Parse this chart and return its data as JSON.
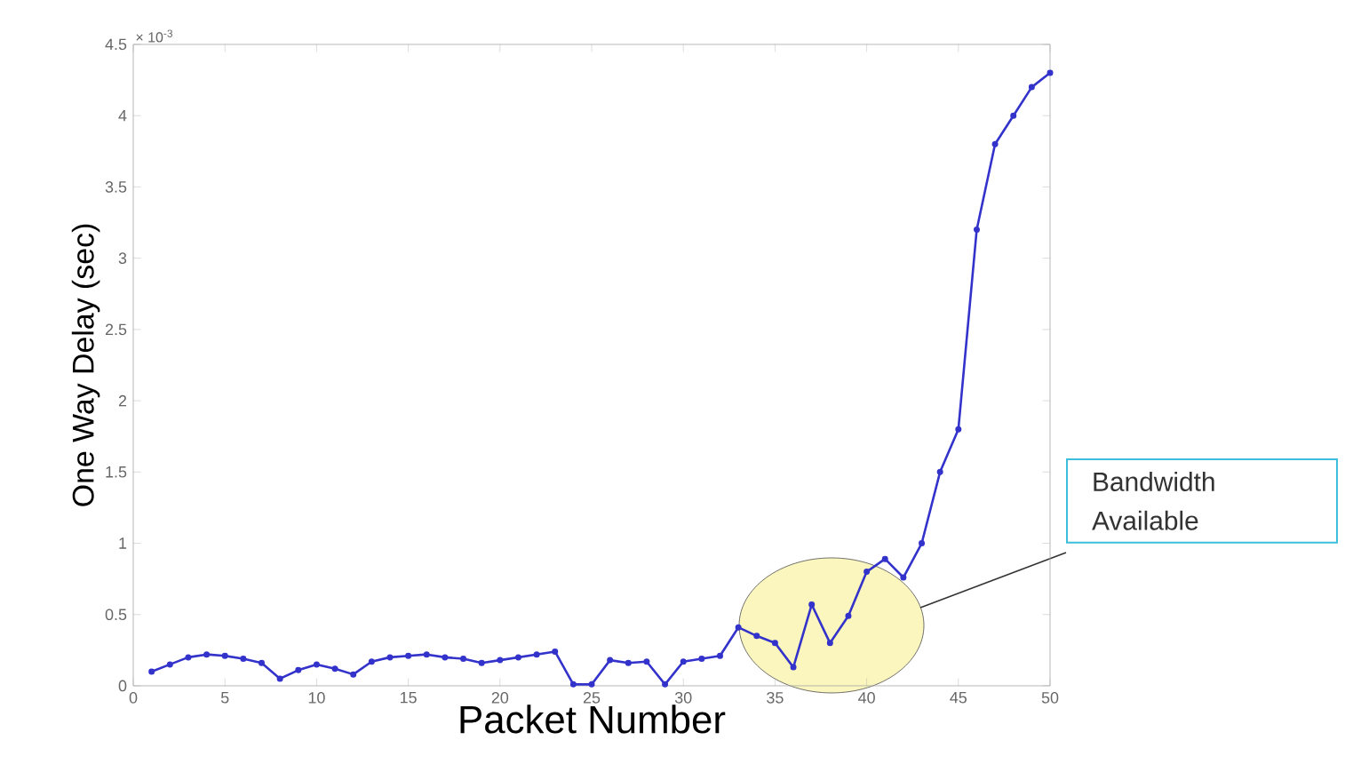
{
  "chart_data": {
    "type": "line",
    "xlabel": "Packet Number",
    "ylabel": "One Way Delay (sec)",
    "x": [
      1,
      2,
      3,
      4,
      5,
      6,
      7,
      8,
      9,
      10,
      11,
      12,
      13,
      14,
      15,
      16,
      17,
      18,
      19,
      20,
      21,
      22,
      23,
      24,
      25,
      26,
      27,
      28,
      29,
      30,
      31,
      32,
      33,
      34,
      35,
      36,
      37,
      38,
      39,
      40,
      41,
      42,
      43,
      44,
      45,
      46,
      47,
      48,
      49,
      50
    ],
    "series": [
      {
        "color": "#3333cc",
        "values": [
          0.1,
          0.15,
          0.2,
          0.22,
          0.21,
          0.19,
          0.16,
          0.05,
          0.11,
          0.15,
          0.12,
          0.08,
          0.17,
          0.2,
          0.21,
          0.22,
          0.2,
          0.19,
          0.16,
          0.18,
          0.2,
          0.22,
          0.24,
          0.01,
          0.01,
          0.18,
          0.16,
          0.17,
          0.01,
          0.17,
          0.19,
          0.21,
          0.41,
          0.35,
          0.3,
          0.13,
          0.57,
          0.3,
          0.49,
          0.8,
          0.89,
          0.76,
          1.0,
          1.5,
          1.8,
          3.2,
          3.8,
          4.0,
          4.2,
          4.3
        ]
      }
    ],
    "xlim": [
      0,
      50
    ],
    "xticks": [
      0,
      5,
      10,
      15,
      20,
      25,
      30,
      35,
      40,
      45,
      50
    ],
    "ylim": [
      0,
      4.5
    ],
    "yticks": [
      0,
      0.5,
      1,
      1.5,
      2,
      2.5,
      3,
      3.5,
      4,
      4.5
    ],
    "marker": "circle",
    "line_style": "solid",
    "annotations": [
      "× 10$^{-3}$",
      "Bandwidth Available"
    ]
  }
}
